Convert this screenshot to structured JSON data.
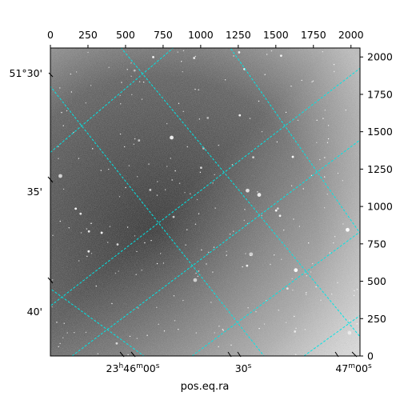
{
  "figure": {
    "xlabel": "pos.eq.ra",
    "pixel_x_ticks": [
      "0",
      "250",
      "500",
      "750",
      "1000",
      "1250",
      "1500",
      "1750",
      "2000"
    ],
    "pixel_y_ticks": [
      "0",
      "250",
      "500",
      "750",
      "1000",
      "1250",
      "1500",
      "1750",
      "2000"
    ],
    "dec_ticks": [
      "51°30'",
      "35'",
      "40'"
    ],
    "ra_ticks": [
      {
        "main": "23",
        "h": "h",
        "m_val": "46",
        "m": "m",
        "s_val": "00",
        "s": "s"
      },
      {
        "main": "30",
        "s": "s"
      },
      {
        "main": "47",
        "m": "m",
        "s_val": "00",
        "s": "s"
      }
    ],
    "grid_color": "#00e5e5",
    "image_type": "grayscale star field"
  }
}
